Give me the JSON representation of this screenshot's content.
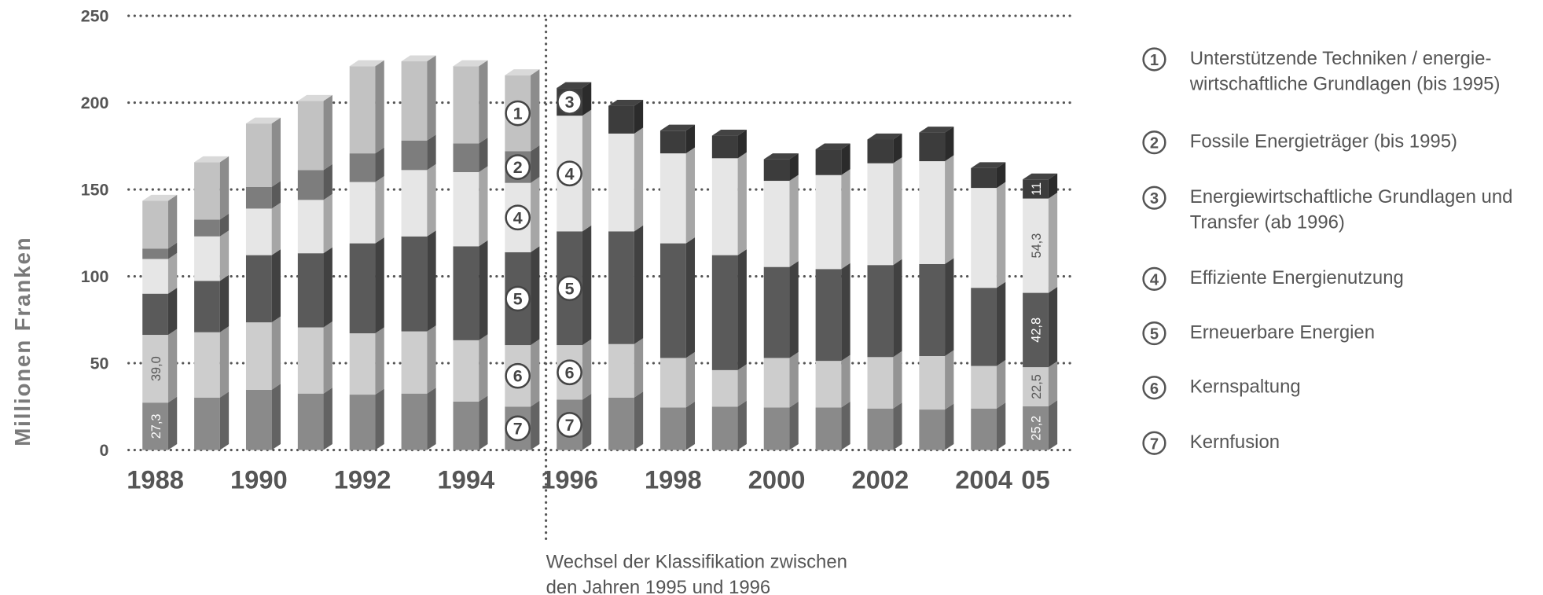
{
  "chart_data": {
    "type": "stacked-bar-3d",
    "y_label": "Millionen Franken",
    "annotation": [
      "Wechsel der Klassifikation zwischen",
      "den Jahren 1995 und 1996"
    ],
    "categories": [
      "1988",
      null,
      "1990",
      null,
      "1992",
      null,
      "1994",
      null,
      "1996",
      null,
      "1998",
      null,
      "2000",
      null,
      "2002",
      null,
      "2004",
      "05"
    ],
    "ylim": [
      0,
      250
    ],
    "yticks": [
      0,
      50,
      100,
      150,
      200,
      250
    ],
    "grid": true,
    "series": [
      {
        "number": "1",
        "name": "Unterstützende Techniken / energie­wirtschaftliche Grundlagen (bis 1995)",
        "color": "#c2c2c2",
        "values": [
          27.5,
          33.0,
          36.5,
          39.8,
          50.2,
          45.6,
          44.5,
          43.8,
          null,
          null,
          null,
          null,
          null,
          null,
          null,
          null,
          null,
          null
        ]
      },
      {
        "number": "2",
        "name": "Fossile Energieträger (bis 1995)",
        "color": "#7d7d7d",
        "values": [
          6.0,
          9.7,
          12.5,
          17.2,
          16.5,
          17.0,
          16.5,
          18.2,
          null,
          null,
          null,
          null,
          null,
          null,
          null,
          null,
          null,
          null
        ]
      },
      {
        "number": "3",
        "name": "Energiewirtschaftliche Grundlagen und Transfer (ab 1996)",
        "color": "#3c3c3c",
        "values": [
          null,
          null,
          null,
          null,
          null,
          null,
          null,
          null,
          15.9,
          16.0,
          13.1,
          13.0,
          12.4,
          14.8,
          13.7,
          16.5,
          11.4,
          11
        ],
        "value_labels": [
          null,
          null,
          null,
          null,
          null,
          null,
          null,
          null,
          null,
          null,
          null,
          null,
          null,
          null,
          null,
          null,
          null,
          "11"
        ]
      },
      {
        "number": "4",
        "name": "Effiziente Energienutzung",
        "color": "#e6e6e6",
        "values": [
          20.0,
          25.6,
          26.8,
          30.7,
          35.3,
          38.2,
          42.7,
          39.9,
          66.6,
          56.3,
          51.8,
          55.8,
          49.6,
          54.1,
          58.6,
          59.2,
          57.5,
          54.3
        ],
        "value_labels": [
          null,
          null,
          null,
          null,
          null,
          null,
          null,
          null,
          null,
          null,
          null,
          null,
          null,
          null,
          null,
          null,
          null,
          "54,3"
        ]
      },
      {
        "number": "5",
        "name": "Erneuerbare Energien",
        "color": "#5a5a5a",
        "values": [
          23.7,
          29.6,
          38.7,
          42.7,
          51.8,
          54.7,
          54.1,
          53.5,
          65.5,
          64.9,
          66.0,
          66.2,
          52.4,
          52.9,
          53.0,
          53.0,
          45.0,
          42.8
        ],
        "value_labels": [
          null,
          null,
          null,
          null,
          null,
          null,
          null,
          null,
          null,
          null,
          null,
          null,
          null,
          null,
          null,
          null,
          null,
          "42,8"
        ]
      },
      {
        "number": "6",
        "name": "Kernspaltung",
        "color": "#cdcdcd",
        "values": [
          39.0,
          37.6,
          38.8,
          38.1,
          35.3,
          35.8,
          35.3,
          35.4,
          31.4,
          30.8,
          28.5,
          21.0,
          28.5,
          26.8,
          29.6,
          30.8,
          24.5,
          22.5
        ],
        "value_labels": [
          "39,0",
          null,
          null,
          null,
          null,
          null,
          null,
          null,
          null,
          null,
          null,
          null,
          null,
          null,
          null,
          null,
          null,
          "22,5"
        ]
      },
      {
        "number": "7",
        "name": "Kernfusion",
        "color": "#8a8a8a",
        "values": [
          27.3,
          30.2,
          34.7,
          32.5,
          31.9,
          32.5,
          27.9,
          25.0,
          29.0,
          30.2,
          24.5,
          25.0,
          24.5,
          24.5,
          23.9,
          23.3,
          23.9,
          25.2
        ],
        "value_labels": [
          "27,3",
          null,
          null,
          null,
          null,
          null,
          null,
          null,
          null,
          null,
          null,
          null,
          null,
          null,
          null,
          null,
          null,
          "25,2"
        ]
      }
    ]
  }
}
